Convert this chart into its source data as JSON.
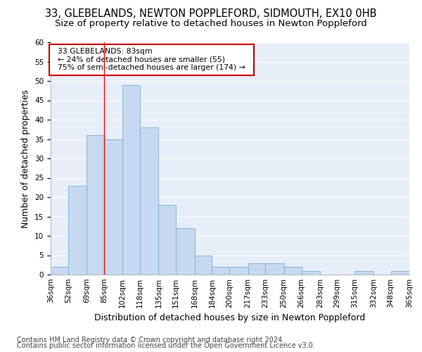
{
  "title1": "33, GLEBELANDS, NEWTON POPPLEFORD, SIDMOUTH, EX10 0HB",
  "title2": "Size of property relative to detached houses in Newton Poppleford",
  "xlabel": "Distribution of detached houses by size in Newton Poppleford",
  "ylabel": "Number of detached properties",
  "footer1": "Contains HM Land Registry data © Crown copyright and database right 2024.",
  "footer2": "Contains public sector information licensed under the Open Government Licence v3.0.",
  "annotation_title": "33 GLEBELANDS: 83sqm",
  "annotation_line2": "← 24% of detached houses are smaller (55)",
  "annotation_line3": "75% of semi-detached houses are larger (174) →",
  "bar_values": [
    2,
    23,
    36,
    35,
    49,
    38,
    18,
    12,
    5,
    2,
    2,
    3,
    3,
    2,
    1,
    0,
    0,
    1,
    0,
    1
  ],
  "bar_color": "#c6d9f0",
  "bar_edge_color": "#7bafd4",
  "bin_edges": [
    36,
    52,
    69,
    85,
    102,
    118,
    135,
    151,
    168,
    184,
    200,
    217,
    233,
    250,
    266,
    283,
    299,
    315,
    332,
    348,
    365
  ],
  "ylim": [
    0,
    60
  ],
  "yticks": [
    0,
    5,
    10,
    15,
    20,
    25,
    30,
    35,
    40,
    45,
    50,
    55,
    60
  ],
  "bg_color": "#e8eef8",
  "grid_color": "#ffffff",
  "fig_bg_color": "#ffffff",
  "annotation_box_color": "#ffffff",
  "annotation_box_edge": "#cc0000",
  "title_fontsize": 10.5,
  "subtitle_fontsize": 9.5,
  "axis_label_fontsize": 9,
  "tick_fontsize": 7.5,
  "footer_fontsize": 7,
  "red_line_x": 85
}
